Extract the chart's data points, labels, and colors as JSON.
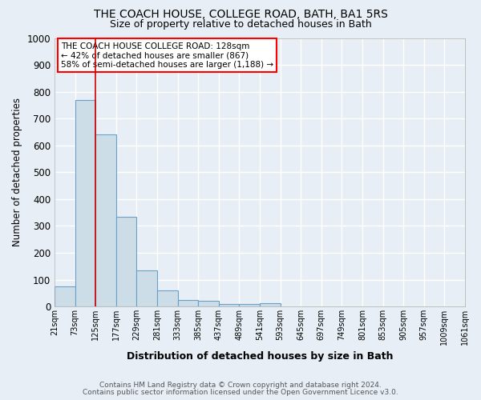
{
  "title": "THE COACH HOUSE, COLLEGE ROAD, BATH, BA1 5RS",
  "subtitle": "Size of property relative to detached houses in Bath",
  "xlabel": "Distribution of detached houses by size in Bath",
  "ylabel": "Number of detached properties",
  "bar_color": "#ccdde8",
  "bar_edge_color": "#6aa0c8",
  "vline_x": 125,
  "vline_color": "#cc0000",
  "ylim": [
    0,
    1000
  ],
  "bin_edges": [
    21,
    73,
    125,
    177,
    229,
    281,
    333,
    385,
    437,
    489,
    541,
    593,
    645,
    697,
    749,
    801,
    853,
    905,
    957,
    1009,
    1061
  ],
  "bar_heights": [
    75,
    770,
    640,
    335,
    135,
    60,
    25,
    20,
    10,
    8,
    12,
    0,
    0,
    0,
    0,
    0,
    0,
    0,
    0,
    0
  ],
  "legend_line1": "THE COACH HOUSE COLLEGE ROAD: 128sqm",
  "legend_line2": "← 42% of detached houses are smaller (867)",
  "legend_line3": "58% of semi-detached houses are larger (1,188) →",
  "footnote1": "Contains HM Land Registry data © Crown copyright and database right 2024.",
  "footnote2": "Contains public sector information licensed under the Open Government Licence v3.0.",
  "background_color": "#e8eef5",
  "grid_color": "#ffffff"
}
